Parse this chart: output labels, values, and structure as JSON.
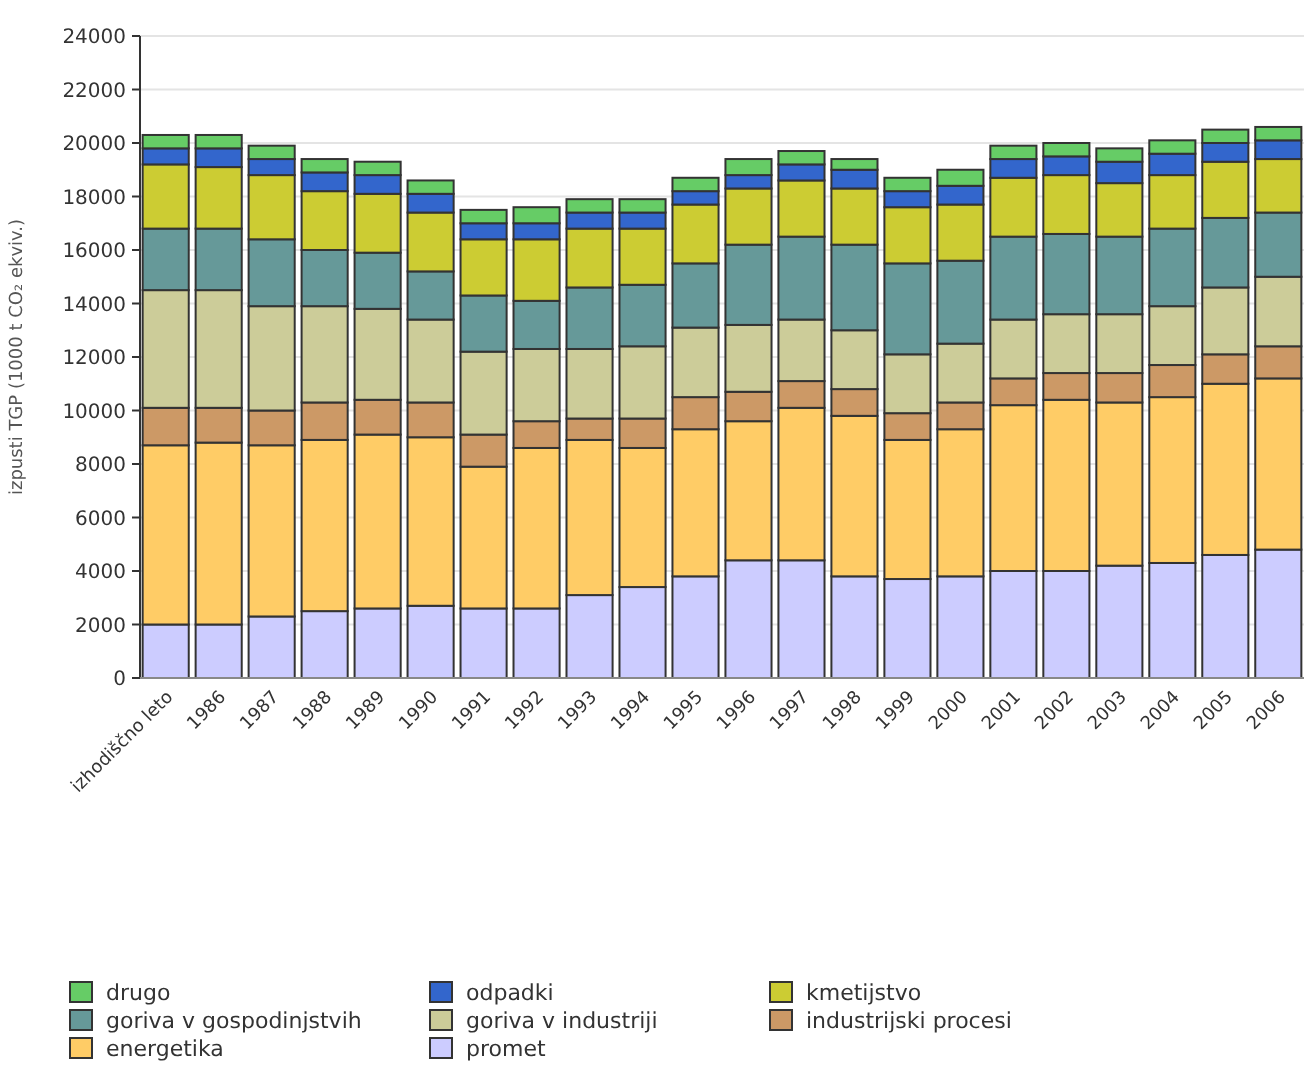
{
  "chart_data": {
    "type": "bar",
    "stacked": true,
    "ylabel": "izpusti TGP (1000 t CO₂ ekviv.)",
    "categories": [
      "izhodiščno leto",
      "1986",
      "1987",
      "1988",
      "1989",
      "1990",
      "1991",
      "1992",
      "1993",
      "1994",
      "1995",
      "1996",
      "1997",
      "1998",
      "1999",
      "2000",
      "2001",
      "2002",
      "2003",
      "2004",
      "2005",
      "2006"
    ],
    "ylim": [
      0,
      24000
    ],
    "yticks": [
      0,
      2000,
      4000,
      6000,
      8000,
      10000,
      12000,
      14000,
      16000,
      18000,
      20000,
      22000,
      24000
    ],
    "grid": "y",
    "legend": "bottom",
    "series": [
      {
        "name": "promet",
        "color": "#ccccff",
        "values": [
          2000,
          2000,
          2300,
          2500,
          2600,
          2700,
          2600,
          2600,
          3100,
          3400,
          3800,
          4400,
          4400,
          3800,
          3700,
          3800,
          4000,
          4000,
          4200,
          4300,
          4600,
          4800
        ]
      },
      {
        "name": "energetika",
        "color": "#ffcc66",
        "values": [
          6700,
          6800,
          6400,
          6400,
          6500,
          6300,
          5300,
          6000,
          5800,
          5200,
          5500,
          5200,
          5700,
          6000,
          5200,
          5500,
          6200,
          6400,
          6100,
          6200,
          6400,
          6400
        ]
      },
      {
        "name": "industrijski procesi",
        "color": "#cc9966",
        "values": [
          1400,
          1300,
          1300,
          1400,
          1300,
          1300,
          1200,
          1000,
          800,
          1100,
          1200,
          1100,
          1000,
          1000,
          1000,
          1000,
          1000,
          1000,
          1100,
          1200,
          1100,
          1200
        ]
      },
      {
        "name": "goriva v industriji",
        "color": "#cccc99",
        "values": [
          4400,
          4400,
          3900,
          3600,
          3400,
          3100,
          3100,
          2700,
          2600,
          2700,
          2600,
          2500,
          2300,
          2200,
          2200,
          2200,
          2200,
          2200,
          2200,
          2200,
          2500,
          2600
        ]
      },
      {
        "name": "goriva v gospodinjstvih",
        "color": "#669999",
        "values": [
          2300,
          2300,
          2500,
          2100,
          2100,
          1800,
          2100,
          1800,
          2300,
          2300,
          2400,
          3000,
          3100,
          3200,
          3400,
          3100,
          3100,
          3000,
          2900,
          2900,
          2600,
          2400
        ]
      },
      {
        "name": "kmetijstvo",
        "color": "#cccc33",
        "values": [
          2400,
          2300,
          2400,
          2200,
          2200,
          2200,
          2100,
          2300,
          2200,
          2100,
          2200,
          2100,
          2100,
          2100,
          2100,
          2100,
          2200,
          2200,
          2000,
          2000,
          2100,
          2000
        ]
      },
      {
        "name": "odpadki",
        "color": "#3366cc",
        "values": [
          600,
          700,
          600,
          700,
          700,
          700,
          600,
          600,
          600,
          600,
          500,
          500,
          600,
          700,
          600,
          700,
          700,
          700,
          800,
          800,
          700,
          700
        ]
      },
      {
        "name": "drugo",
        "color": "#66cc66",
        "values": [
          500,
          500,
          500,
          500,
          500,
          500,
          500,
          600,
          500,
          500,
          500,
          600,
          500,
          400,
          500,
          600,
          500,
          500,
          500,
          500,
          500,
          500
        ]
      }
    ]
  }
}
